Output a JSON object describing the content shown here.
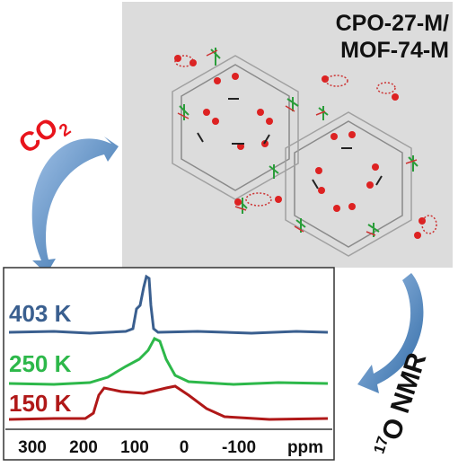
{
  "framework": {
    "label_lines": [
      "CPO-27-M/",
      "MOF-74-M"
    ]
  },
  "left_arrow": {
    "label": "CO",
    "subscript": "2"
  },
  "right_arrow": {
    "superscript": "17",
    "label": "O NMR"
  },
  "spectrum": {
    "traces": [
      {
        "temperature": "403 K"
      },
      {
        "temperature": "250 K"
      },
      {
        "temperature": "150 K"
      }
    ],
    "axis": {
      "ticks": [
        300,
        200,
        100,
        0,
        -100
      ],
      "unit": "ppm"
    }
  }
}
